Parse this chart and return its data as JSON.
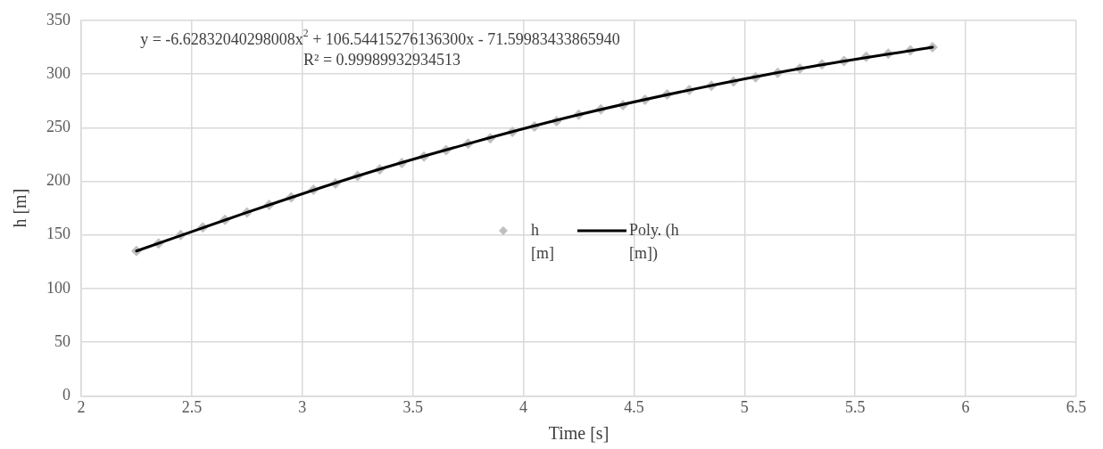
{
  "chart_data": {
    "type": "scatter",
    "xlabel": "Time [s]",
    "ylabel": "h [m]",
    "xlim": [
      2,
      6.5
    ],
    "xticks": [
      2,
      2.5,
      3,
      3.5,
      4,
      4.5,
      5,
      5.5,
      6,
      6.5
    ],
    "ylim": [
      0,
      350
    ],
    "yticks": [
      0,
      50,
      100,
      150,
      200,
      250,
      300,
      350
    ],
    "grid": true,
    "legend": "center",
    "marker": "diamond",
    "annotations": [
      "y = -6.62832040298008x$^{2}$ + 106.54415276136300x - 71.59983433865940",
      "R² = 0.99989932934513"
    ],
    "series": [
      {
        "name": "h [m]",
        "color": "#bfbfbf",
        "x": [
          2.25,
          2.35,
          2.45,
          2.55,
          2.65,
          2.75,
          2.85,
          2.95,
          3.05,
          3.15,
          3.25,
          3.35,
          3.45,
          3.55,
          3.65,
          3.75,
          3.85,
          3.95,
          4.05,
          4.15,
          4.25,
          4.35,
          4.45,
          4.55,
          4.65,
          4.75,
          4.85,
          4.95,
          5.05,
          5.15,
          5.25,
          5.35,
          5.45,
          5.55,
          5.65,
          5.75,
          5.85
        ],
        "values": [
          135,
          142,
          150,
          157,
          164,
          171,
          178,
          185,
          192,
          198,
          205,
          211,
          217,
          223,
          229,
          235,
          240,
          246,
          251,
          256,
          262,
          267,
          271,
          276,
          281,
          285,
          289,
          293,
          297,
          301,
          305,
          309,
          312,
          316,
          319,
          322,
          325
        ]
      },
      {
        "name": "Poly. (h [m])",
        "type": "line",
        "color": "#000000",
        "marker": "none",
        "x": [
          2.25,
          2.75,
          3.25,
          3.75,
          4.25,
          4.75,
          5.25,
          5.85
        ],
        "values": [
          135,
          171,
          205,
          235,
          262,
          285,
          305,
          325
        ]
      }
    ]
  }
}
